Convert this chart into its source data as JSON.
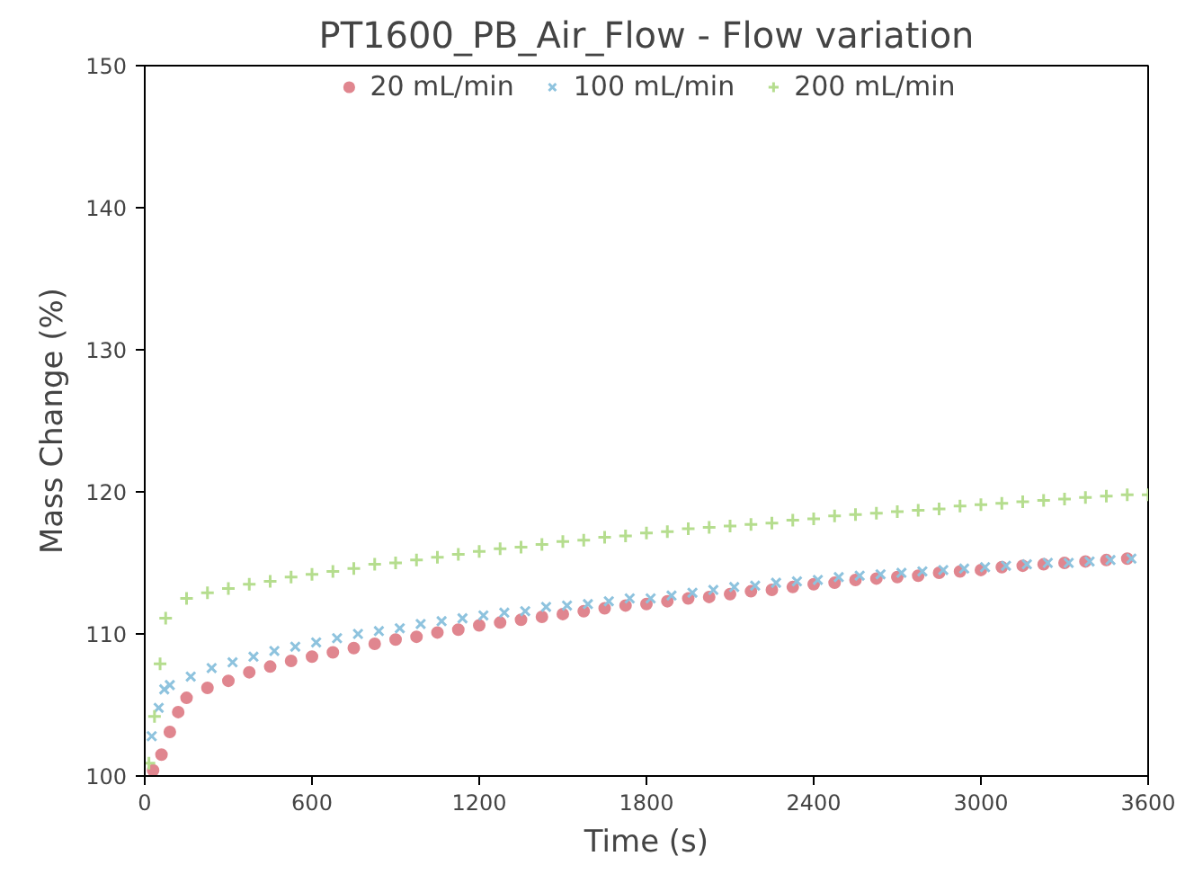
{
  "chart_data": {
    "type": "scatter",
    "title": "PT1600_PB_Air_Flow - Flow variation",
    "xlabel": "Time (s)",
    "ylabel": "Mass Change (%)",
    "xlim": [
      0,
      3600
    ],
    "ylim": [
      100,
      150
    ],
    "xticks": [
      0,
      600,
      1200,
      1800,
      2400,
      3000,
      3600
    ],
    "yticks": [
      100,
      110,
      120,
      130,
      140,
      150
    ],
    "grid": false,
    "legend": "top",
    "series": [
      {
        "name": "20 mL/min",
        "color": "#e0868f",
        "marker": "circle",
        "x": [
          30,
          60,
          90,
          120,
          150,
          225,
          300,
          375,
          450,
          525,
          600,
          675,
          750,
          825,
          900,
          975,
          1050,
          1125,
          1200,
          1275,
          1350,
          1425,
          1500,
          1575,
          1650,
          1725,
          1800,
          1875,
          1950,
          2025,
          2100,
          2175,
          2250,
          2325,
          2400,
          2475,
          2550,
          2625,
          2700,
          2775,
          2850,
          2925,
          3000,
          3075,
          3150,
          3225,
          3300,
          3375,
          3450,
          3525
        ],
        "values": [
          100.4,
          101.5,
          103.1,
          104.5,
          105.5,
          106.2,
          106.7,
          107.3,
          107.7,
          108.1,
          108.4,
          108.7,
          109.0,
          109.3,
          109.6,
          109.8,
          110.1,
          110.3,
          110.6,
          110.8,
          111.0,
          111.2,
          111.4,
          111.6,
          111.8,
          112.0,
          112.1,
          112.3,
          112.5,
          112.6,
          112.8,
          113.0,
          113.1,
          113.3,
          113.5,
          113.6,
          113.8,
          113.9,
          114.0,
          114.1,
          114.3,
          114.4,
          114.5,
          114.7,
          114.8,
          114.9,
          115.0,
          115.1,
          115.2,
          115.3
        ]
      },
      {
        "name": "100 mL/min",
        "color": "#8ec3de",
        "marker": "x",
        "x": [
          25,
          50,
          70,
          90,
          165,
          240,
          315,
          390,
          465,
          540,
          615,
          690,
          765,
          840,
          915,
          990,
          1065,
          1140,
          1215,
          1290,
          1365,
          1440,
          1515,
          1590,
          1665,
          1740,
          1815,
          1890,
          1965,
          2040,
          2115,
          2190,
          2265,
          2340,
          2415,
          2490,
          2565,
          2640,
          2715,
          2790,
          2865,
          2940,
          3015,
          3090,
          3165,
          3240,
          3315,
          3390,
          3465,
          3540
        ],
        "values": [
          102.8,
          104.8,
          106.1,
          106.4,
          107.0,
          107.6,
          108.0,
          108.4,
          108.8,
          109.1,
          109.4,
          109.7,
          110.0,
          110.2,
          110.4,
          110.7,
          110.9,
          111.1,
          111.3,
          111.5,
          111.6,
          111.9,
          112.0,
          112.1,
          112.3,
          112.5,
          112.5,
          112.7,
          112.9,
          113.1,
          113.3,
          113.4,
          113.6,
          113.7,
          113.8,
          114.0,
          114.1,
          114.2,
          114.3,
          114.4,
          114.5,
          114.6,
          114.7,
          114.8,
          114.9,
          115.0,
          115.0,
          115.1,
          115.2,
          115.3
        ]
      },
      {
        "name": "200 mL/min",
        "color": "#b5dd8e",
        "marker": "cross",
        "x": [
          15,
          35,
          55,
          75,
          150,
          225,
          300,
          375,
          450,
          525,
          600,
          675,
          750,
          825,
          900,
          975,
          1050,
          1125,
          1200,
          1275,
          1350,
          1425,
          1500,
          1575,
          1650,
          1725,
          1800,
          1875,
          1950,
          2025,
          2100,
          2175,
          2250,
          2325,
          2400,
          2475,
          2550,
          2625,
          2700,
          2775,
          2850,
          2925,
          3000,
          3075,
          3150,
          3225,
          3300,
          3375,
          3450,
          3525,
          3600
        ],
        "values": [
          100.9,
          104.2,
          107.9,
          111.1,
          112.5,
          112.9,
          113.2,
          113.5,
          113.7,
          114.0,
          114.2,
          114.4,
          114.6,
          114.9,
          115.0,
          115.2,
          115.4,
          115.6,
          115.8,
          116.0,
          116.1,
          116.3,
          116.5,
          116.6,
          116.8,
          116.9,
          117.1,
          117.2,
          117.4,
          117.5,
          117.6,
          117.7,
          117.8,
          118.0,
          118.1,
          118.3,
          118.4,
          118.5,
          118.6,
          118.7,
          118.8,
          119.0,
          119.1,
          119.2,
          119.3,
          119.4,
          119.5,
          119.6,
          119.7,
          119.8,
          119.8
        ]
      }
    ]
  }
}
